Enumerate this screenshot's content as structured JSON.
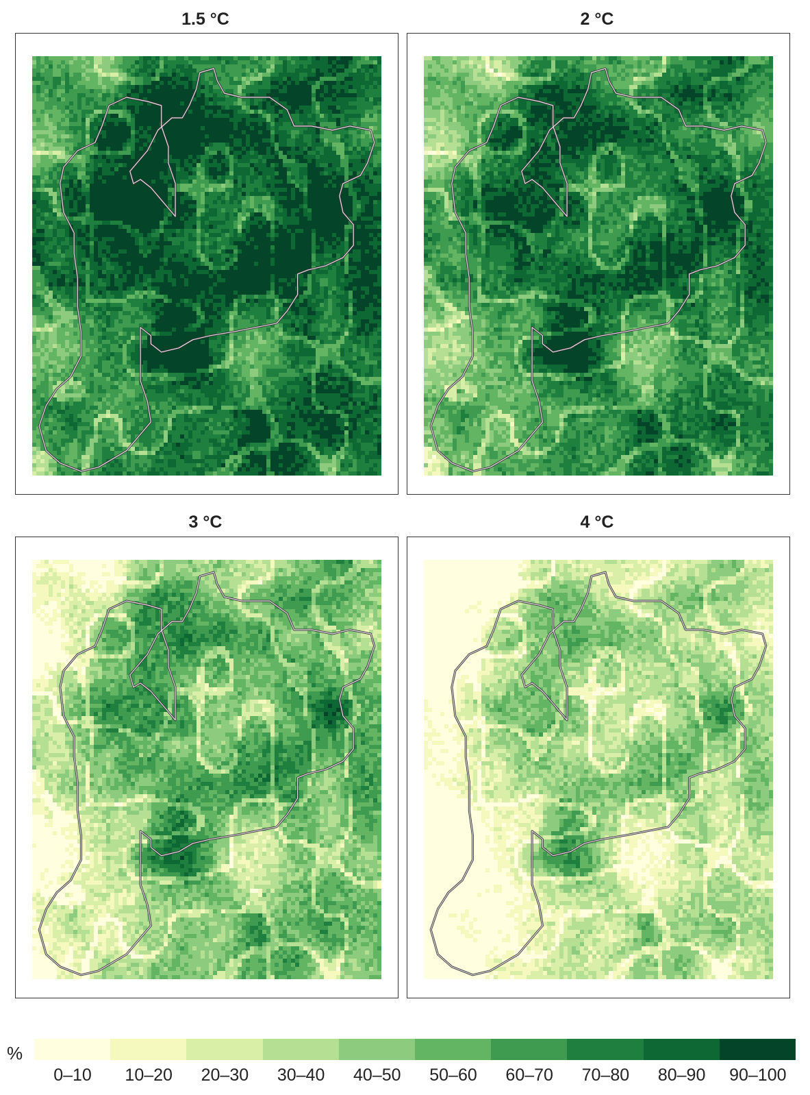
{
  "panels": [
    {
      "title": "1.5 °C",
      "wet": 0.78,
      "seed": 11
    },
    {
      "title": "2 °C",
      "wet": 0.7,
      "seed": 23
    },
    {
      "title": "3 °C",
      "wet": 0.5,
      "seed": 37
    },
    {
      "title": "4 °C",
      "wet": 0.36,
      "seed": 53
    }
  ],
  "legend": {
    "unit": "%",
    "classes": [
      {
        "label": "0–10",
        "color": "#ffffe0"
      },
      {
        "label": "10–20",
        "color": "#f5f9be"
      },
      {
        "label": "20–30",
        "color": "#d9efa8"
      },
      {
        "label": "30–40",
        "color": "#b5df93"
      },
      {
        "label": "40–50",
        "color": "#8dcc7e"
      },
      {
        "label": "50–60",
        "color": "#63b463"
      },
      {
        "label": "60–70",
        "color": "#3f9b4f"
      },
      {
        "label": "70–80",
        "color": "#1f7f3e"
      },
      {
        "label": "80–90",
        "color": "#0e6833"
      },
      {
        "label": "90–100",
        "color": "#04452a"
      }
    ]
  },
  "outline_color": "#e8e0e8"
}
